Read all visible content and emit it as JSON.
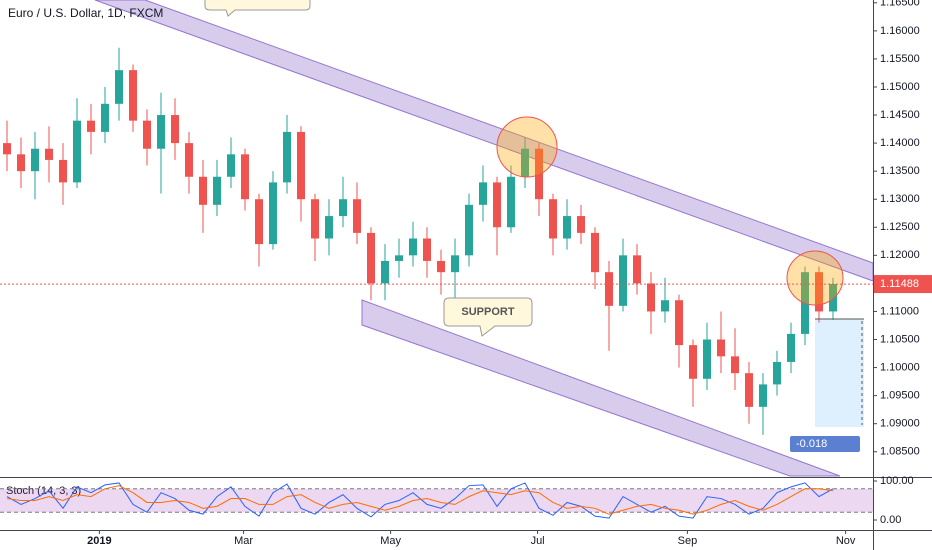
{
  "chart_data": {
    "type": "candlestick",
    "title": "Euro / U.S. Dollar, 1D, FXCM",
    "categories": [
      null,
      null,
      null,
      null,
      null,
      null,
      null,
      null,
      null,
      null,
      null,
      null,
      null,
      null,
      null,
      null,
      null,
      null,
      null,
      null,
      null,
      null,
      null,
      null,
      null,
      null,
      null,
      null,
      null,
      null,
      null,
      null,
      null,
      null,
      null,
      null,
      null,
      null,
      null,
      null,
      null,
      null,
      null,
      null,
      null,
      null,
      null,
      null,
      null,
      null,
      null,
      null,
      null,
      null,
      null,
      null,
      null,
      null,
      null,
      null
    ],
    "open": [
      1.14,
      1.138,
      1.135,
      1.139,
      1.137,
      1.133,
      1.144,
      1.142,
      1.147,
      1.153,
      1.144,
      1.139,
      1.145,
      1.14,
      1.134,
      1.129,
      1.134,
      1.138,
      1.13,
      1.122,
      1.133,
      1.142,
      1.13,
      1.123,
      1.127,
      1.13,
      1.124,
      1.115,
      1.119,
      1.12,
      1.123,
      1.119,
      1.117,
      1.12,
      1.129,
      1.133,
      1.125,
      1.134,
      1.139,
      1.13,
      1.123,
      1.127,
      1.124,
      1.117,
      1.111,
      1.12,
      1.115,
      1.11,
      1.112,
      1.104,
      1.098,
      1.105,
      1.102,
      1.099,
      1.093,
      1.097,
      1.101,
      1.106,
      1.117,
      1.11
    ],
    "high": [
      1.144,
      1.141,
      1.142,
      1.143,
      1.14,
      1.148,
      1.147,
      1.15,
      1.157,
      1.154,
      1.146,
      1.149,
      1.148,
      1.142,
      1.137,
      1.137,
      1.141,
      1.139,
      1.131,
      1.135,
      1.145,
      1.143,
      1.131,
      1.13,
      1.134,
      1.133,
      1.125,
      1.122,
      1.123,
      1.126,
      1.125,
      1.121,
      1.123,
      1.131,
      1.136,
      1.134,
      1.136,
      1.141,
      1.14,
      1.131,
      1.13,
      1.129,
      1.125,
      1.119,
      1.123,
      1.122,
      1.117,
      1.116,
      1.113,
      1.105,
      1.108,
      1.11,
      1.107,
      1.101,
      1.099,
      1.103,
      1.108,
      1.118,
      1.118,
      1.116
    ],
    "low": [
      1.135,
      1.132,
      1.13,
      1.133,
      1.129,
      1.132,
      1.138,
      1.14,
      1.144,
      1.142,
      1.136,
      1.131,
      1.137,
      1.131,
      1.124,
      1.127,
      1.132,
      1.128,
      1.118,
      1.121,
      1.131,
      1.126,
      1.119,
      1.12,
      1.125,
      1.122,
      1.112,
      1.112,
      1.116,
      1.118,
      1.116,
      1.113,
      1.112,
      1.118,
      1.126,
      1.12,
      1.124,
      1.132,
      1.127,
      1.12,
      1.121,
      1.122,
      1.114,
      1.103,
      1.11,
      1.113,
      1.106,
      1.108,
      1.1,
      1.093,
      1.096,
      1.099,
      1.096,
      1.09,
      1.088,
      1.095,
      1.099,
      1.104,
      1.108,
      1.1085
    ],
    "close": [
      1.138,
      1.135,
      1.139,
      1.137,
      1.133,
      1.144,
      1.142,
      1.147,
      1.153,
      1.144,
      1.139,
      1.145,
      1.14,
      1.134,
      1.129,
      1.134,
      1.138,
      1.13,
      1.122,
      1.133,
      1.142,
      1.13,
      1.123,
      1.127,
      1.13,
      1.124,
      1.115,
      1.119,
      1.12,
      1.123,
      1.119,
      1.117,
      1.12,
      1.129,
      1.133,
      1.125,
      1.134,
      1.139,
      1.13,
      1.123,
      1.127,
      1.124,
      1.117,
      1.111,
      1.12,
      1.115,
      1.11,
      1.112,
      1.104,
      1.098,
      1.105,
      1.102,
      1.099,
      1.093,
      1.097,
      1.101,
      1.106,
      1.117,
      1.11,
      1.1149
    ],
    "up_color": "#26a69a",
    "down_color": "#ef5350",
    "xlim": [
      0,
      62
    ],
    "xticks": [
      {
        "value": 7.1,
        "label": "2019"
      },
      {
        "value": 17.4,
        "label": "Mar"
      },
      {
        "value": 27.9,
        "label": "May"
      },
      {
        "value": 38.4,
        "label": "Jul"
      },
      {
        "value": 49.1,
        "label": "Sep"
      },
      {
        "value": 60.4,
        "label": "Nov"
      }
    ],
    "ylim": [
      1.0805,
      1.1655
    ],
    "yticks": [
      {
        "value": 1.085,
        "label": "1.08500"
      },
      {
        "value": 1.09,
        "label": "1.09000"
      },
      {
        "value": 1.095,
        "label": "1.09500"
      },
      {
        "value": 1.1,
        "label": "1.10000"
      },
      {
        "value": 1.105,
        "label": "1.10500"
      },
      {
        "value": 1.11,
        "label": "1.11000"
      },
      {
        "value": 1.115,
        "label": "1.11500"
      },
      {
        "value": 1.12,
        "label": "1.12000"
      },
      {
        "value": 1.125,
        "label": "1.12500"
      },
      {
        "value": 1.13,
        "label": "1.13000"
      },
      {
        "value": 1.135,
        "label": "1.13500"
      },
      {
        "value": 1.14,
        "label": "1.14000"
      },
      {
        "value": 1.145,
        "label": "1.14500"
      },
      {
        "value": 1.15,
        "label": "1.15000"
      },
      {
        "value": 1.155,
        "label": "1.15500"
      },
      {
        "value": 1.16,
        "label": "1.16000"
      },
      {
        "value": 1.165,
        "label": "1.16500"
      }
    ],
    "last_price": {
      "value": 1.11488,
      "label": "1.11488",
      "color": "#ef5350"
    },
    "annotations": {
      "support": "SUPPORT",
      "measure": "-0.018"
    },
    "stoch": {
      "title": "Stoch (14, 3, 3)",
      "ylim": [
        -25.6,
        107.7
      ],
      "yticks": [
        {
          "value": 100,
          "label": "100.00"
        },
        {
          "value": 0,
          "label": "0.00"
        }
      ],
      "series": [
        {
          "color": "#2962ff",
          "values": [
            60,
            40,
            55,
            75,
            30,
            85,
            70,
            90,
            95,
            40,
            20,
            70,
            55,
            25,
            15,
            60,
            85,
            35,
            10,
            70,
            92,
            30,
            15,
            45,
            65,
            30,
            8,
            40,
            50,
            70,
            40,
            30,
            55,
            88,
            90,
            35,
            80,
            95,
            30,
            12,
            45,
            35,
            10,
            5,
            60,
            40,
            20,
            35,
            10,
            5,
            60,
            55,
            40,
            15,
            30,
            70,
            85,
            95,
            60,
            80
          ]
        },
        {
          "color": "#ff6d00",
          "values": [
            55,
            50,
            50,
            60,
            50,
            65,
            60,
            80,
            88,
            70,
            45,
            45,
            50,
            45,
            30,
            35,
            55,
            55,
            40,
            40,
            60,
            65,
            45,
            30,
            40,
            45,
            35,
            25,
            35,
            50,
            55,
            45,
            40,
            60,
            75,
            70,
            65,
            75,
            70,
            45,
            30,
            35,
            30,
            15,
            25,
            35,
            40,
            30,
            25,
            15,
            25,
            40,
            50,
            35,
            25,
            40,
            60,
            80,
            80,
            75
          ]
        }
      ]
    }
  }
}
